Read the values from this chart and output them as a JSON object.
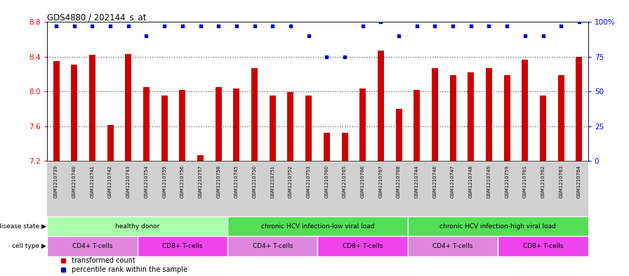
{
  "title": "GDS4880 / 202144_s_at",
  "samples": [
    "GSM1210739",
    "GSM1210740",
    "GSM1210741",
    "GSM1210742",
    "GSM1210743",
    "GSM1210754",
    "GSM1210755",
    "GSM1210756",
    "GSM1210757",
    "GSM1210758",
    "GSM1210745",
    "GSM1210750",
    "GSM1210751",
    "GSM1210752",
    "GSM1210753",
    "GSM1210760",
    "GSM1210765",
    "GSM1210766",
    "GSM1210767",
    "GSM1210768",
    "GSM1210744",
    "GSM1210746",
    "GSM1210747",
    "GSM1210748",
    "GSM1210749",
    "GSM1210759",
    "GSM1210761",
    "GSM1210762",
    "GSM1210763",
    "GSM1210764"
  ],
  "bar_values": [
    8.35,
    8.31,
    8.42,
    7.61,
    8.43,
    8.05,
    7.95,
    8.02,
    7.26,
    8.05,
    8.03,
    8.27,
    7.95,
    7.99,
    7.95,
    7.52,
    7.52,
    8.03,
    8.47,
    7.8,
    8.02,
    8.27,
    8.19,
    8.22,
    8.27,
    8.19,
    8.37,
    7.95,
    8.19,
    8.4
  ],
  "percentile_values": [
    97,
    97,
    97,
    97,
    97,
    90,
    97,
    97,
    97,
    97,
    97,
    97,
    97,
    97,
    90,
    75,
    75,
    97,
    100,
    90,
    97,
    97,
    97,
    97,
    97,
    97,
    90,
    90,
    97,
    100
  ],
  "bar_color": "#cc0000",
  "dot_color": "#0000cc",
  "ylim": [
    7.2,
    8.8
  ],
  "y_ticks_left": [
    7.2,
    7.6,
    8.0,
    8.4,
    8.8
  ],
  "y_ticks_right": [
    0,
    25,
    50,
    75,
    100
  ],
  "ytick_labels_right": [
    "0",
    "25",
    "50",
    "75",
    "100%"
  ],
  "disease_state_groups": [
    {
      "label": "healthy donor",
      "start": 0,
      "end": 9,
      "color": "#aaffaa"
    },
    {
      "label": "chronic HCV infection-low viral load",
      "start": 10,
      "end": 19,
      "color": "#66dd66"
    },
    {
      "label": "chronic HCV infection-high viral load",
      "start": 20,
      "end": 29,
      "color": "#66dd66"
    }
  ],
  "cell_type_groups": [
    {
      "label": "CD4+ T-cells",
      "start": 0,
      "end": 4,
      "color": "#dd88dd"
    },
    {
      "label": "CD8+ T-cells",
      "start": 5,
      "end": 9,
      "color": "#ee44ee"
    },
    {
      "label": "CD4+ T-cells",
      "start": 10,
      "end": 14,
      "color": "#dd88dd"
    },
    {
      "label": "CD8+ T-cells",
      "start": 15,
      "end": 19,
      "color": "#ee44ee"
    },
    {
      "label": "CD4+ T-cells",
      "start": 20,
      "end": 24,
      "color": "#dd88dd"
    },
    {
      "label": "CD8+ T-cells",
      "start": 25,
      "end": 29,
      "color": "#ee44ee"
    }
  ],
  "legend_bar_label": "transformed count",
  "legend_dot_label": "percentile rank within the sample",
  "disease_label": "disease state",
  "cell_label": "cell type",
  "xtick_bg": "#d8d8d8",
  "grid_color": "#555555",
  "ds_colors": [
    "#aaffaa",
    "#66ee66",
    "#44cc44"
  ]
}
